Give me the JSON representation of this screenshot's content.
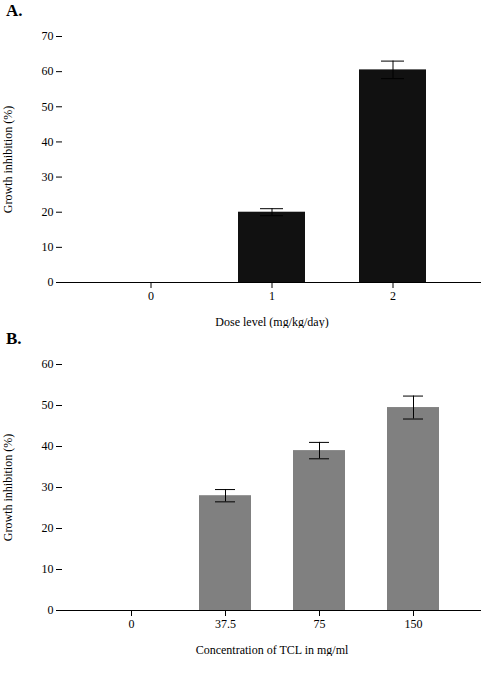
{
  "chart_data": [
    {
      "type": "bar",
      "title": "A.",
      "xlabel": "Dose level (mg/kg/day)",
      "ylabel": "Growth inhibition (%)",
      "categories": [
        "0",
        "1",
        "2"
      ],
      "values": [
        0,
        20,
        60.5
      ],
      "errors": [
        0,
        1.0,
        2.5
      ],
      "color": "#111111",
      "ylim": [
        0,
        70
      ],
      "yticks": [
        0,
        10,
        20,
        30,
        40,
        50,
        60,
        70
      ]
    },
    {
      "type": "bar",
      "title": "B.",
      "xlabel": "Concentration of TCL in mg/ml",
      "ylabel": "Growth inhibition (%)",
      "categories": [
        "0",
        "37.5",
        "75",
        "150"
      ],
      "values": [
        0,
        28,
        39,
        49.5
      ],
      "errors": [
        0,
        1.5,
        2.0,
        2.8
      ],
      "color": "#808080",
      "ylim": [
        0,
        60
      ],
      "yticks": [
        0,
        10,
        20,
        30,
        40,
        50,
        60
      ]
    }
  ]
}
